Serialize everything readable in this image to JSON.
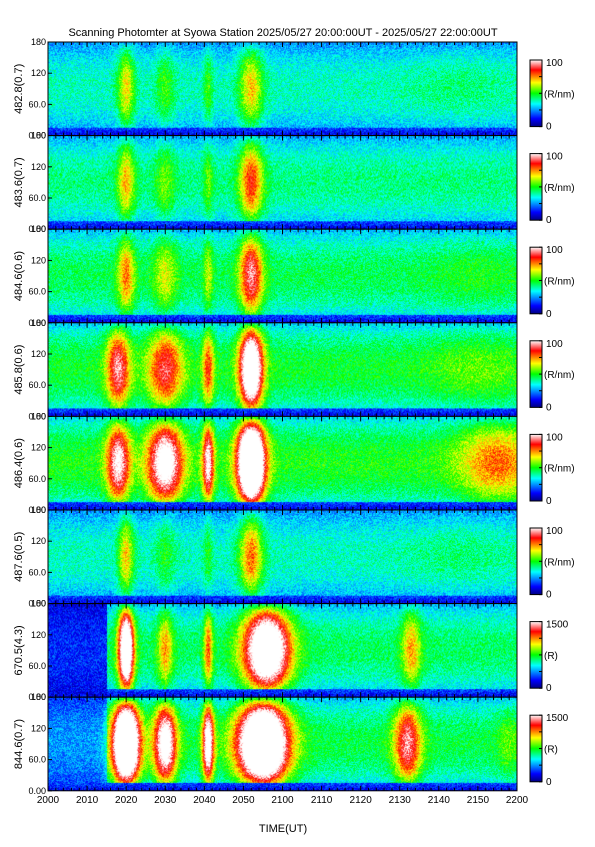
{
  "chart_data": {
    "type": "heatmap",
    "title": "Scanning Photomter at Syowa Station  2025/05/27 20:00:00UT - 2025/05/27 22:00:00UT",
    "xlabel": "TIME(UT)",
    "x_ticks": [
      "2000",
      "2010",
      "2020",
      "2030",
      "2040",
      "2050",
      "2100",
      "2110",
      "2120",
      "2130",
      "2140",
      "2150",
      "2200"
    ],
    "y_ticks": [
      "0.00",
      "60.0",
      "120",
      "180"
    ],
    "ylim": [
      0,
      180
    ],
    "colors": {
      "scale": [
        "#000080",
        "#0000ff",
        "#00ffff",
        "#00ff00",
        "#ffff00",
        "#ff0000",
        "#ffffff"
      ]
    },
    "panels": [
      {
        "name": "482.8(0.7)",
        "unit": "(R/nm)",
        "cmax": "100",
        "cmin": "0",
        "background": 0.38,
        "edge": 0.1,
        "onset": 1.0,
        "events": [
          {
            "t": 2020,
            "w": 2.2,
            "a": 0.3
          },
          {
            "t": 2030,
            "w": 2.5,
            "a": 0.15
          },
          {
            "t": 2041,
            "w": 1.2,
            "a": 0.15
          },
          {
            "t": 2052,
            "w": 3.0,
            "a": 0.32
          },
          {
            "t": 2145,
            "w": 14,
            "a": 0.05
          }
        ]
      },
      {
        "name": "483.6(0.7)",
        "unit": "(R/nm)",
        "cmax": "100",
        "cmin": "0",
        "background": 0.42,
        "edge": 0.1,
        "onset": 1.0,
        "events": [
          {
            "t": 2020,
            "w": 2.2,
            "a": 0.3
          },
          {
            "t": 2030,
            "w": 2.5,
            "a": 0.15
          },
          {
            "t": 2041,
            "w": 1.2,
            "a": 0.15
          },
          {
            "t": 2052,
            "w": 3.0,
            "a": 0.42
          }
        ]
      },
      {
        "name": "484.6(0.6)",
        "unit": "(R/nm)",
        "cmax": "100",
        "cmin": "0",
        "background": 0.45,
        "edge": 0.1,
        "onset": 1.0,
        "events": [
          {
            "t": 2020,
            "w": 2.2,
            "a": 0.32
          },
          {
            "t": 2030,
            "w": 3.0,
            "a": 0.2
          },
          {
            "t": 2041,
            "w": 1.2,
            "a": 0.18
          },
          {
            "t": 2052,
            "w": 3.0,
            "a": 0.5
          },
          {
            "t": 2150,
            "w": 12,
            "a": 0.05
          }
        ]
      },
      {
        "name": "485.8(0.6)",
        "unit": "(R/nm)",
        "cmax": "100",
        "cmin": "0",
        "background": 0.48,
        "edge": 0.1,
        "onset": 1.0,
        "events": [
          {
            "t": 2018,
            "w": 3.0,
            "a": 0.48
          },
          {
            "t": 2030,
            "w": 4.5,
            "a": 0.42
          },
          {
            "t": 2041,
            "w": 1.5,
            "a": 0.35
          },
          {
            "t": 2052,
            "w": 3.0,
            "a": 0.85
          },
          {
            "t": 2150,
            "w": 12,
            "a": 0.08
          }
        ]
      },
      {
        "name": "486.4(0.6)",
        "unit": "(R/nm)",
        "cmax": "100",
        "cmin": "0",
        "background": 0.5,
        "edge": 0.1,
        "onset": 1.0,
        "events": [
          {
            "t": 2018,
            "w": 3.0,
            "a": 0.55
          },
          {
            "t": 2030,
            "w": 4.5,
            "a": 0.65
          },
          {
            "t": 2041,
            "w": 1.5,
            "a": 0.55
          },
          {
            "t": 2052,
            "w": 3.5,
            "a": 1.1
          },
          {
            "t": 2155,
            "w": 10,
            "a": 0.28
          }
        ]
      },
      {
        "name": "487.6(0.5)",
        "unit": "(R/nm)",
        "cmax": "100",
        "cmin": "0",
        "background": 0.38,
        "edge": 0.1,
        "onset": 1.0,
        "events": [
          {
            "t": 2020,
            "w": 2.0,
            "a": 0.32
          },
          {
            "t": 2030,
            "w": 2.5,
            "a": 0.12
          },
          {
            "t": 2041,
            "w": 1.2,
            "a": 0.12
          },
          {
            "t": 2052,
            "w": 3.0,
            "a": 0.4
          },
          {
            "t": 2145,
            "w": 14,
            "a": 0.05
          }
        ]
      },
      {
        "name": "670.5(4.3)",
        "unit": "(R)",
        "cmax": "1500",
        "cmin": "0",
        "background": 0.44,
        "edge": 0.1,
        "onset": 0.35,
        "events": [
          {
            "t": 2020,
            "w": 2.0,
            "a": 0.9
          },
          {
            "t": 2030,
            "w": 2.0,
            "a": 0.3
          },
          {
            "t": 2041,
            "w": 1.2,
            "a": 0.35
          },
          {
            "t": 2056,
            "w": 6.0,
            "a": 0.9
          },
          {
            "t": 2133,
            "w": 2.5,
            "a": 0.3
          }
        ]
      },
      {
        "name": "844.6(0.7)",
        "unit": "(R)",
        "cmax": "1500",
        "cmin": "0",
        "background": 0.46,
        "edge": 0.1,
        "onset": 0.55,
        "events": [
          {
            "t": 2020,
            "w": 3.5,
            "a": 1.1
          },
          {
            "t": 2030,
            "w": 3.0,
            "a": 0.7
          },
          {
            "t": 2041,
            "w": 1.5,
            "a": 0.7
          },
          {
            "t": 2055,
            "w": 6.5,
            "a": 1.1
          },
          {
            "t": 2132,
            "w": 3.5,
            "a": 0.5
          },
          {
            "t": 2158,
            "w": 3.0,
            "a": 0.1
          }
        ]
      }
    ]
  }
}
